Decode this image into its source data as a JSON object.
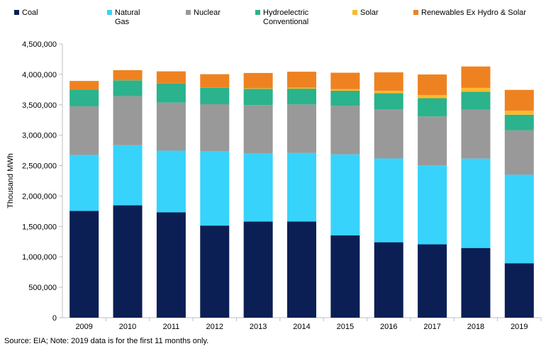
{
  "chart_data": {
    "type": "bar",
    "stacked": true,
    "title": "",
    "xlabel": "",
    "ylabel": "Thousand MWh",
    "categories": [
      "2009",
      "2010",
      "2011",
      "2012",
      "2013",
      "2014",
      "2015",
      "2016",
      "2017",
      "2018",
      "2019"
    ],
    "ylim": [
      0,
      4500000
    ],
    "ytick_step": 500000,
    "ytick_labels": [
      "0",
      "500,000",
      "1,000,000",
      "1,500,000",
      "2,000,000",
      "2,500,000",
      "3,000,000",
      "3,500,000",
      "4,000,000",
      "4,500,000"
    ],
    "grid": false,
    "legend_position": "top",
    "series": [
      {
        "name": "Coal",
        "legend_lines": [
          "Coal"
        ],
        "color": "#0b1f55",
        "values": [
          1755000,
          1847000,
          1733000,
          1514000,
          1581000,
          1582000,
          1352000,
          1240000,
          1206000,
          1146000,
          895000
        ]
      },
      {
        "name": "Natural Gas",
        "legend_lines": [
          "Natural",
          "Gas"
        ],
        "color": "#37d3fb",
        "values": [
          921000,
          988000,
          1013000,
          1226000,
          1124000,
          1127000,
          1333000,
          1378000,
          1297000,
          1469000,
          1455000
        ]
      },
      {
        "name": "Nuclear",
        "legend_lines": [
          "Nuclear"
        ],
        "color": "#999999",
        "values": [
          799000,
          807000,
          790000,
          769000,
          789000,
          797000,
          797000,
          806000,
          805000,
          807000,
          730000
        ]
      },
      {
        "name": "Hydroelectric Conventional",
        "legend_lines": [
          "Hydroelectric",
          "Conventional"
        ],
        "color": "#2ab38c",
        "values": [
          273000,
          260000,
          319000,
          276000,
          269000,
          259000,
          249000,
          268000,
          300000,
          292000,
          257000
        ]
      },
      {
        "name": "Solar",
        "legend_lines": [
          "Solar"
        ],
        "color": "#fdb92e",
        "values": [
          1000,
          1000,
          2000,
          4000,
          9000,
          18000,
          25000,
          36000,
          53000,
          64000,
          66000
        ]
      },
      {
        "name": "Renewables Ex Hydro & Solar",
        "legend_lines": [
          "Renewables Ex Hydro & Solar"
        ],
        "color": "#ef8220",
        "values": [
          143000,
          166000,
          193000,
          214000,
          251000,
          261000,
          271000,
          305000,
          337000,
          352000,
          342000
        ]
      }
    ]
  },
  "source_note": "Source: EIA; Note: 2019 data is for the first 11 months only."
}
